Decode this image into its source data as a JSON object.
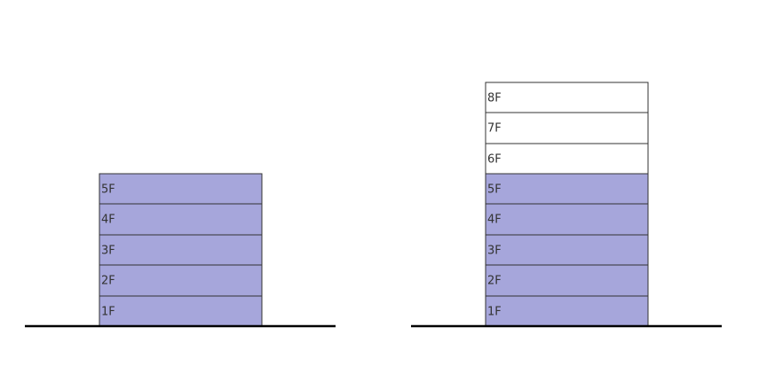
{
  "buildings": [
    {
      "floors": [
        "1F",
        "2F",
        "3F",
        "4F",
        "5F"
      ]
    },
    {
      "floors": [
        "1F",
        "2F",
        "3F",
        "4F",
        "5F",
        "6F",
        "7F",
        "8F"
      ]
    }
  ]
}
